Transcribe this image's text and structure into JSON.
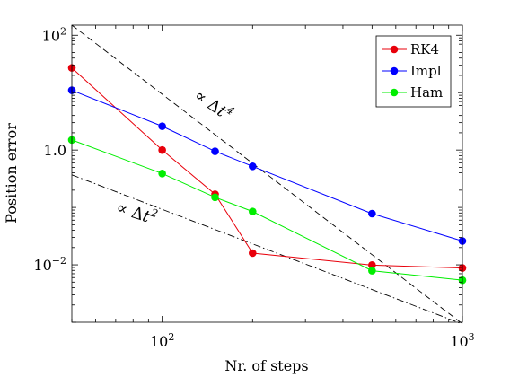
{
  "chart_data": {
    "type": "line",
    "xscale": "log",
    "yscale": "log",
    "xlabel": "Nr. of steps",
    "ylabel": "Position error",
    "xlim": [
      50,
      1000
    ],
    "ylim": [
      0.001,
      150
    ],
    "x_ticks": [
      {
        "value": 100,
        "base": "10",
        "exp": "2"
      },
      {
        "value": 1000,
        "base": "10",
        "exp": "3"
      }
    ],
    "y_ticks": [
      {
        "value": 0.01,
        "base": "10",
        "exp": "−2"
      },
      {
        "value": 1,
        "base": "10",
        "exp": "0",
        "mant": "1.0"
      },
      {
        "value": 100,
        "base": "10",
        "exp": "2"
      }
    ],
    "series": [
      {
        "name": "RK4",
        "color": "#e8000b",
        "x": [
          50,
          100,
          150,
          200,
          500,
          1000
        ],
        "y": [
          27,
          1.0,
          0.17,
          0.016,
          0.0099,
          0.0088
        ]
      },
      {
        "name": "Impl",
        "color": "#0000ff",
        "x": [
          50,
          100,
          150,
          200,
          500,
          1000
        ],
        "y": [
          11,
          2.6,
          0.95,
          0.52,
          0.078,
          0.026
        ]
      },
      {
        "name": "Ham",
        "color": "#00ee00",
        "x": [
          50,
          100,
          150,
          200,
          500,
          1000
        ],
        "y": [
          1.5,
          0.39,
          0.15,
          0.085,
          0.0079,
          0.0054
        ]
      }
    ],
    "reference_lines": [
      {
        "label": "∝ Δt⁴",
        "style": "dashed",
        "x": [
          50,
          1000
        ],
        "y": [
          150,
          0.00094
        ]
      },
      {
        "label": "∝ Δt²",
        "style": "dashdot",
        "x": [
          50,
          1000
        ],
        "y": [
          0.37,
          0.00093
        ]
      }
    ],
    "annotations": [
      {
        "prefix": "∝ Δ",
        "var": "t",
        "exp": "4"
      },
      {
        "prefix": "∝ Δ",
        "var": "t",
        "exp": "2"
      }
    ],
    "legend": {
      "position": "top-right",
      "entries": [
        "RK4",
        "Impl",
        "Ham"
      ]
    },
    "grid": false
  }
}
